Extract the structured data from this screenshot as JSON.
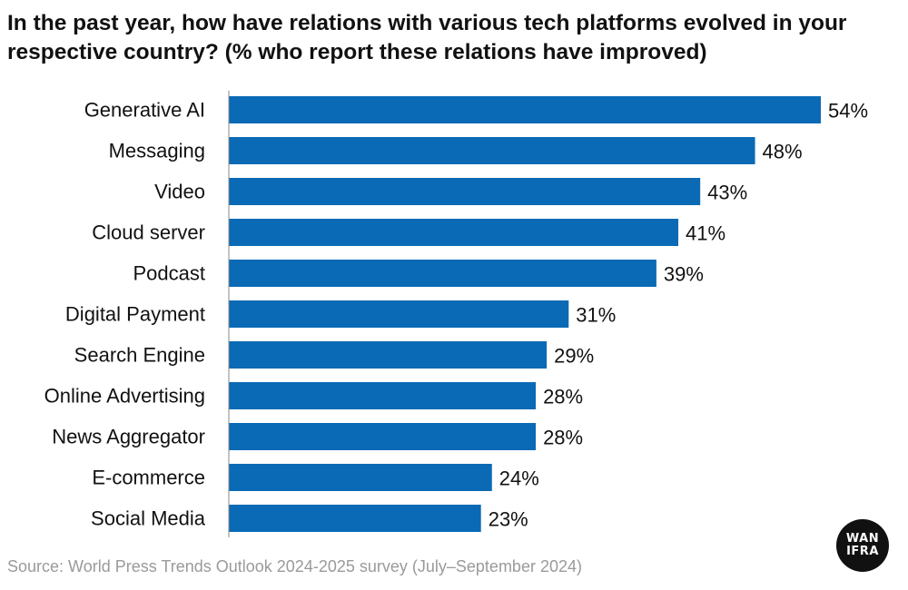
{
  "chart_data": {
    "type": "bar",
    "orientation": "horizontal",
    "title": "In the past year, how have relations with various tech platforms evolved in your respective country? (% who report these relations have improved)",
    "categories": [
      "Generative AI",
      "Messaging",
      "Video",
      "Cloud server",
      "Podcast",
      "Digital Payment",
      "Search Engine",
      "Online Advertising",
      "News Aggregator",
      "E-commerce",
      "Social Media"
    ],
    "values": [
      54,
      48,
      43,
      41,
      39,
      31,
      29,
      28,
      28,
      24,
      23
    ],
    "value_suffix": "%",
    "xlim": [
      0,
      54
    ],
    "xlabel": "",
    "ylabel": "",
    "grid": false,
    "bar_color": "#0a6ab5"
  },
  "footer": {
    "source": "Source: World Press Trends Outlook 2024-2025 survey (July–September 2024)"
  },
  "logo": {
    "line1": "WAN",
    "line2": "IFRA"
  }
}
